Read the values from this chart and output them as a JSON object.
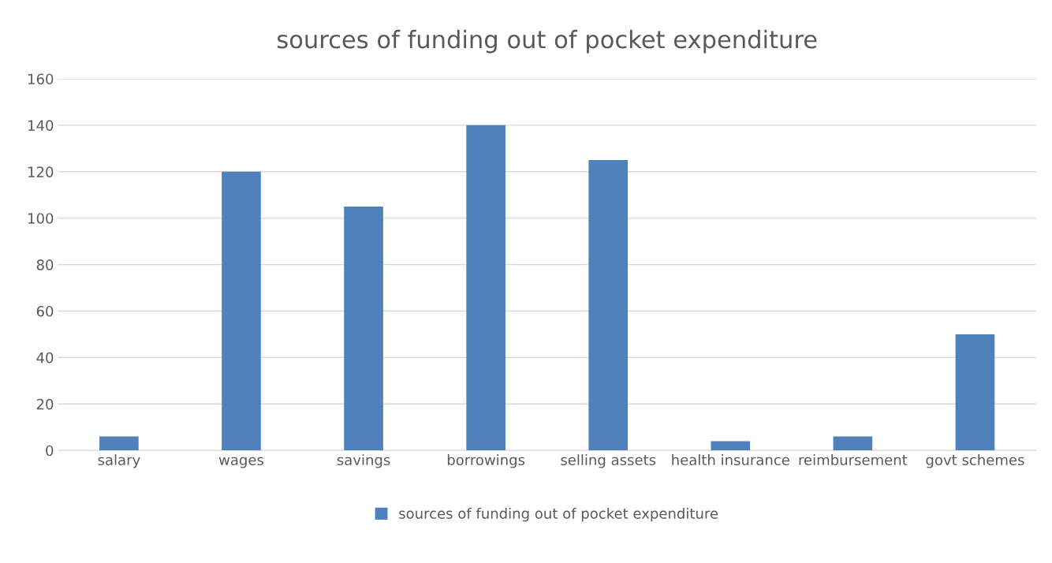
{
  "chart_data": {
    "type": "bar",
    "title": "sources of funding out of pocket expenditure",
    "categories": [
      "salary",
      "wages",
      "savings",
      "borrowings",
      "selling assets",
      "health insurance",
      "reimbursement",
      "govt schemes"
    ],
    "series": [
      {
        "name": "sources of funding out of pocket expenditure",
        "color": "#4f81bd",
        "values": [
          6,
          120,
          105,
          140,
          125,
          4,
          6,
          50
        ]
      }
    ],
    "ylim": [
      0,
      160
    ],
    "yticks": [
      0,
      20,
      40,
      60,
      80,
      100,
      120,
      140,
      160
    ],
    "grid": "y",
    "legend": "bottom"
  }
}
